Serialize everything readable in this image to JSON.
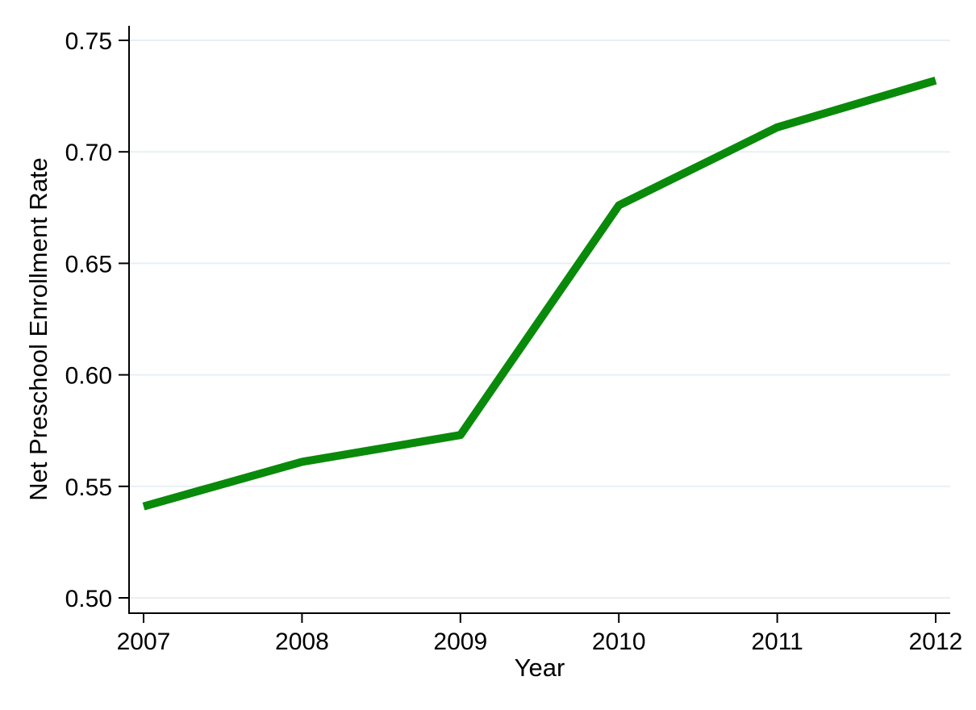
{
  "page": {
    "background": "#ffffff"
  },
  "chart_data": {
    "type": "line",
    "title": "",
    "xlabel": "Year",
    "ylabel": "Net Preschool Enrollment Rate",
    "x": [
      2007,
      2008,
      2009,
      2010,
      2011,
      2012
    ],
    "xtick_labels": [
      "2007",
      "2008",
      "2009",
      "2010",
      "2011",
      "2012"
    ],
    "series": [
      {
        "name": "Net Preschool Enrollment Rate",
        "color": "#0a8a0a",
        "values": [
          0.541,
          0.561,
          0.573,
          0.676,
          0.711,
          0.732
        ]
      }
    ],
    "yticks": [
      0.5,
      0.55,
      0.6,
      0.65,
      0.7,
      0.75
    ],
    "ytick_labels": [
      "0.50",
      "0.55",
      "0.60",
      "0.65",
      "0.70",
      "0.75"
    ],
    "ylim": [
      0.493,
      0.757
    ],
    "xlim": [
      2006.91,
      2012.09
    ],
    "grid": "horizontal",
    "legend": "none",
    "line_width": 10,
    "colors": {
      "line": "#0a8a0a",
      "grid": "#e9eff4",
      "axis": "#000000",
      "text": "#000000",
      "background": "#ffffff"
    }
  }
}
